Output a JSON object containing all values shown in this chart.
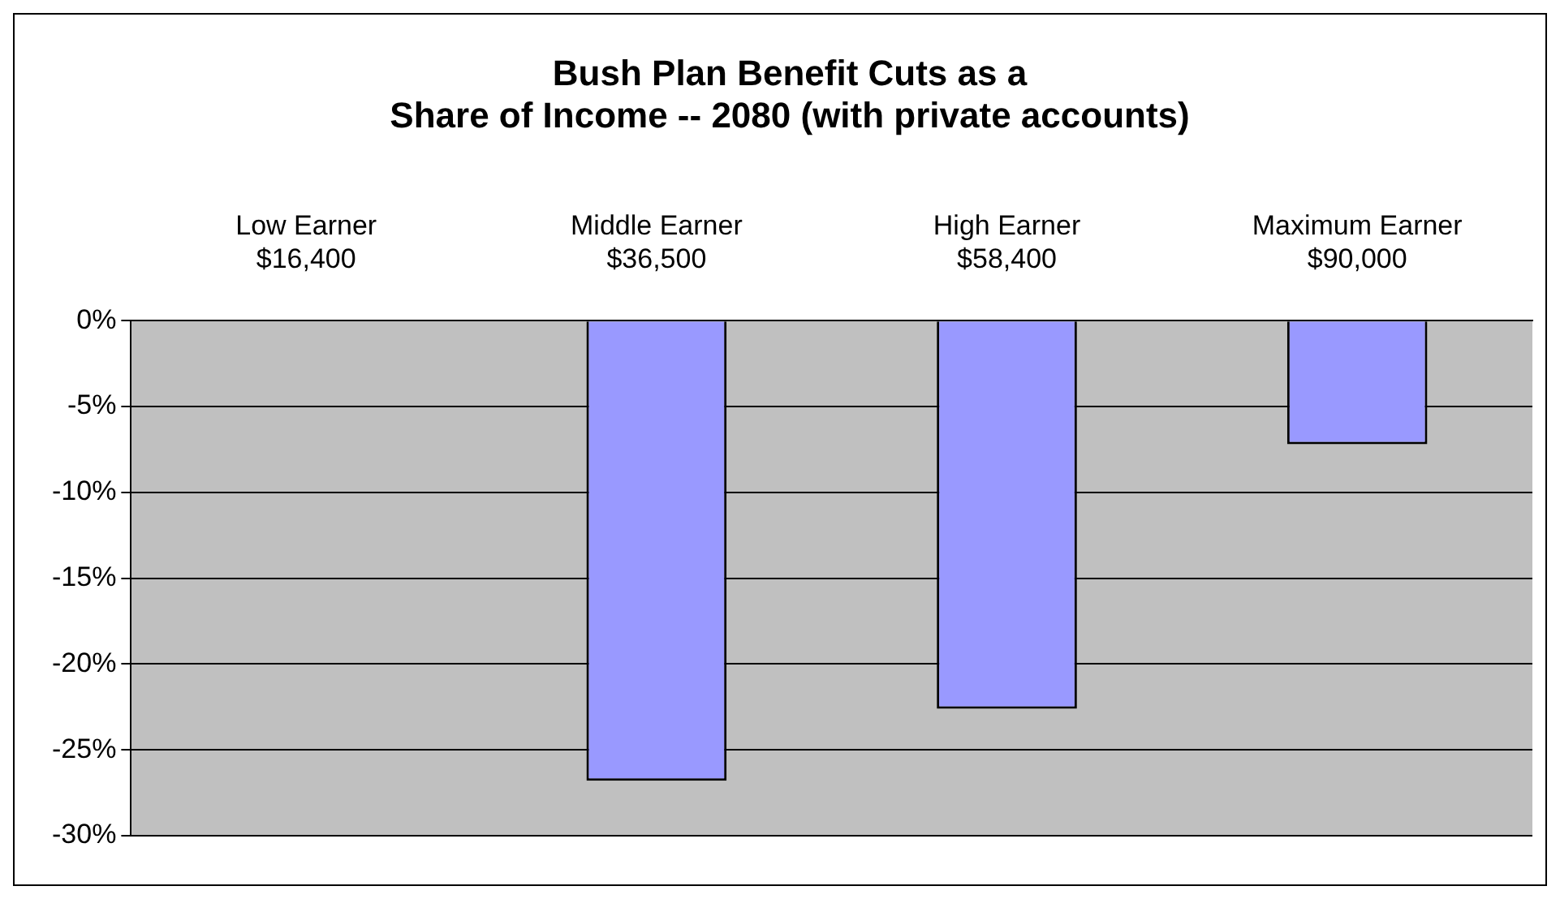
{
  "chart_data": {
    "type": "bar",
    "title": [
      "Bush Plan Benefit Cuts as a",
      "Share of Income -- 2080 (with private accounts)"
    ],
    "categories": [
      "Low Earner\n$16,400",
      "Middle Earner\n$36,500",
      "High Earner\n$58,400",
      "Maximum Earner\n$90,000"
    ],
    "values": [
      0,
      -26.8,
      -22.6,
      -7.2
    ],
    "color": "#9999ff",
    "ylim": [
      -30,
      0
    ],
    "yticks": [
      {
        "value": 0,
        "label": "0%"
      },
      {
        "value": -5,
        "label": "-5%"
      },
      {
        "value": -10,
        "label": "-10%"
      },
      {
        "value": -15,
        "label": "-15%"
      },
      {
        "value": -20,
        "label": "-20%"
      },
      {
        "value": -25,
        "label": "-25%"
      },
      {
        "value": -30,
        "label": "-30%"
      }
    ],
    "grid": "y",
    "legend": false
  }
}
